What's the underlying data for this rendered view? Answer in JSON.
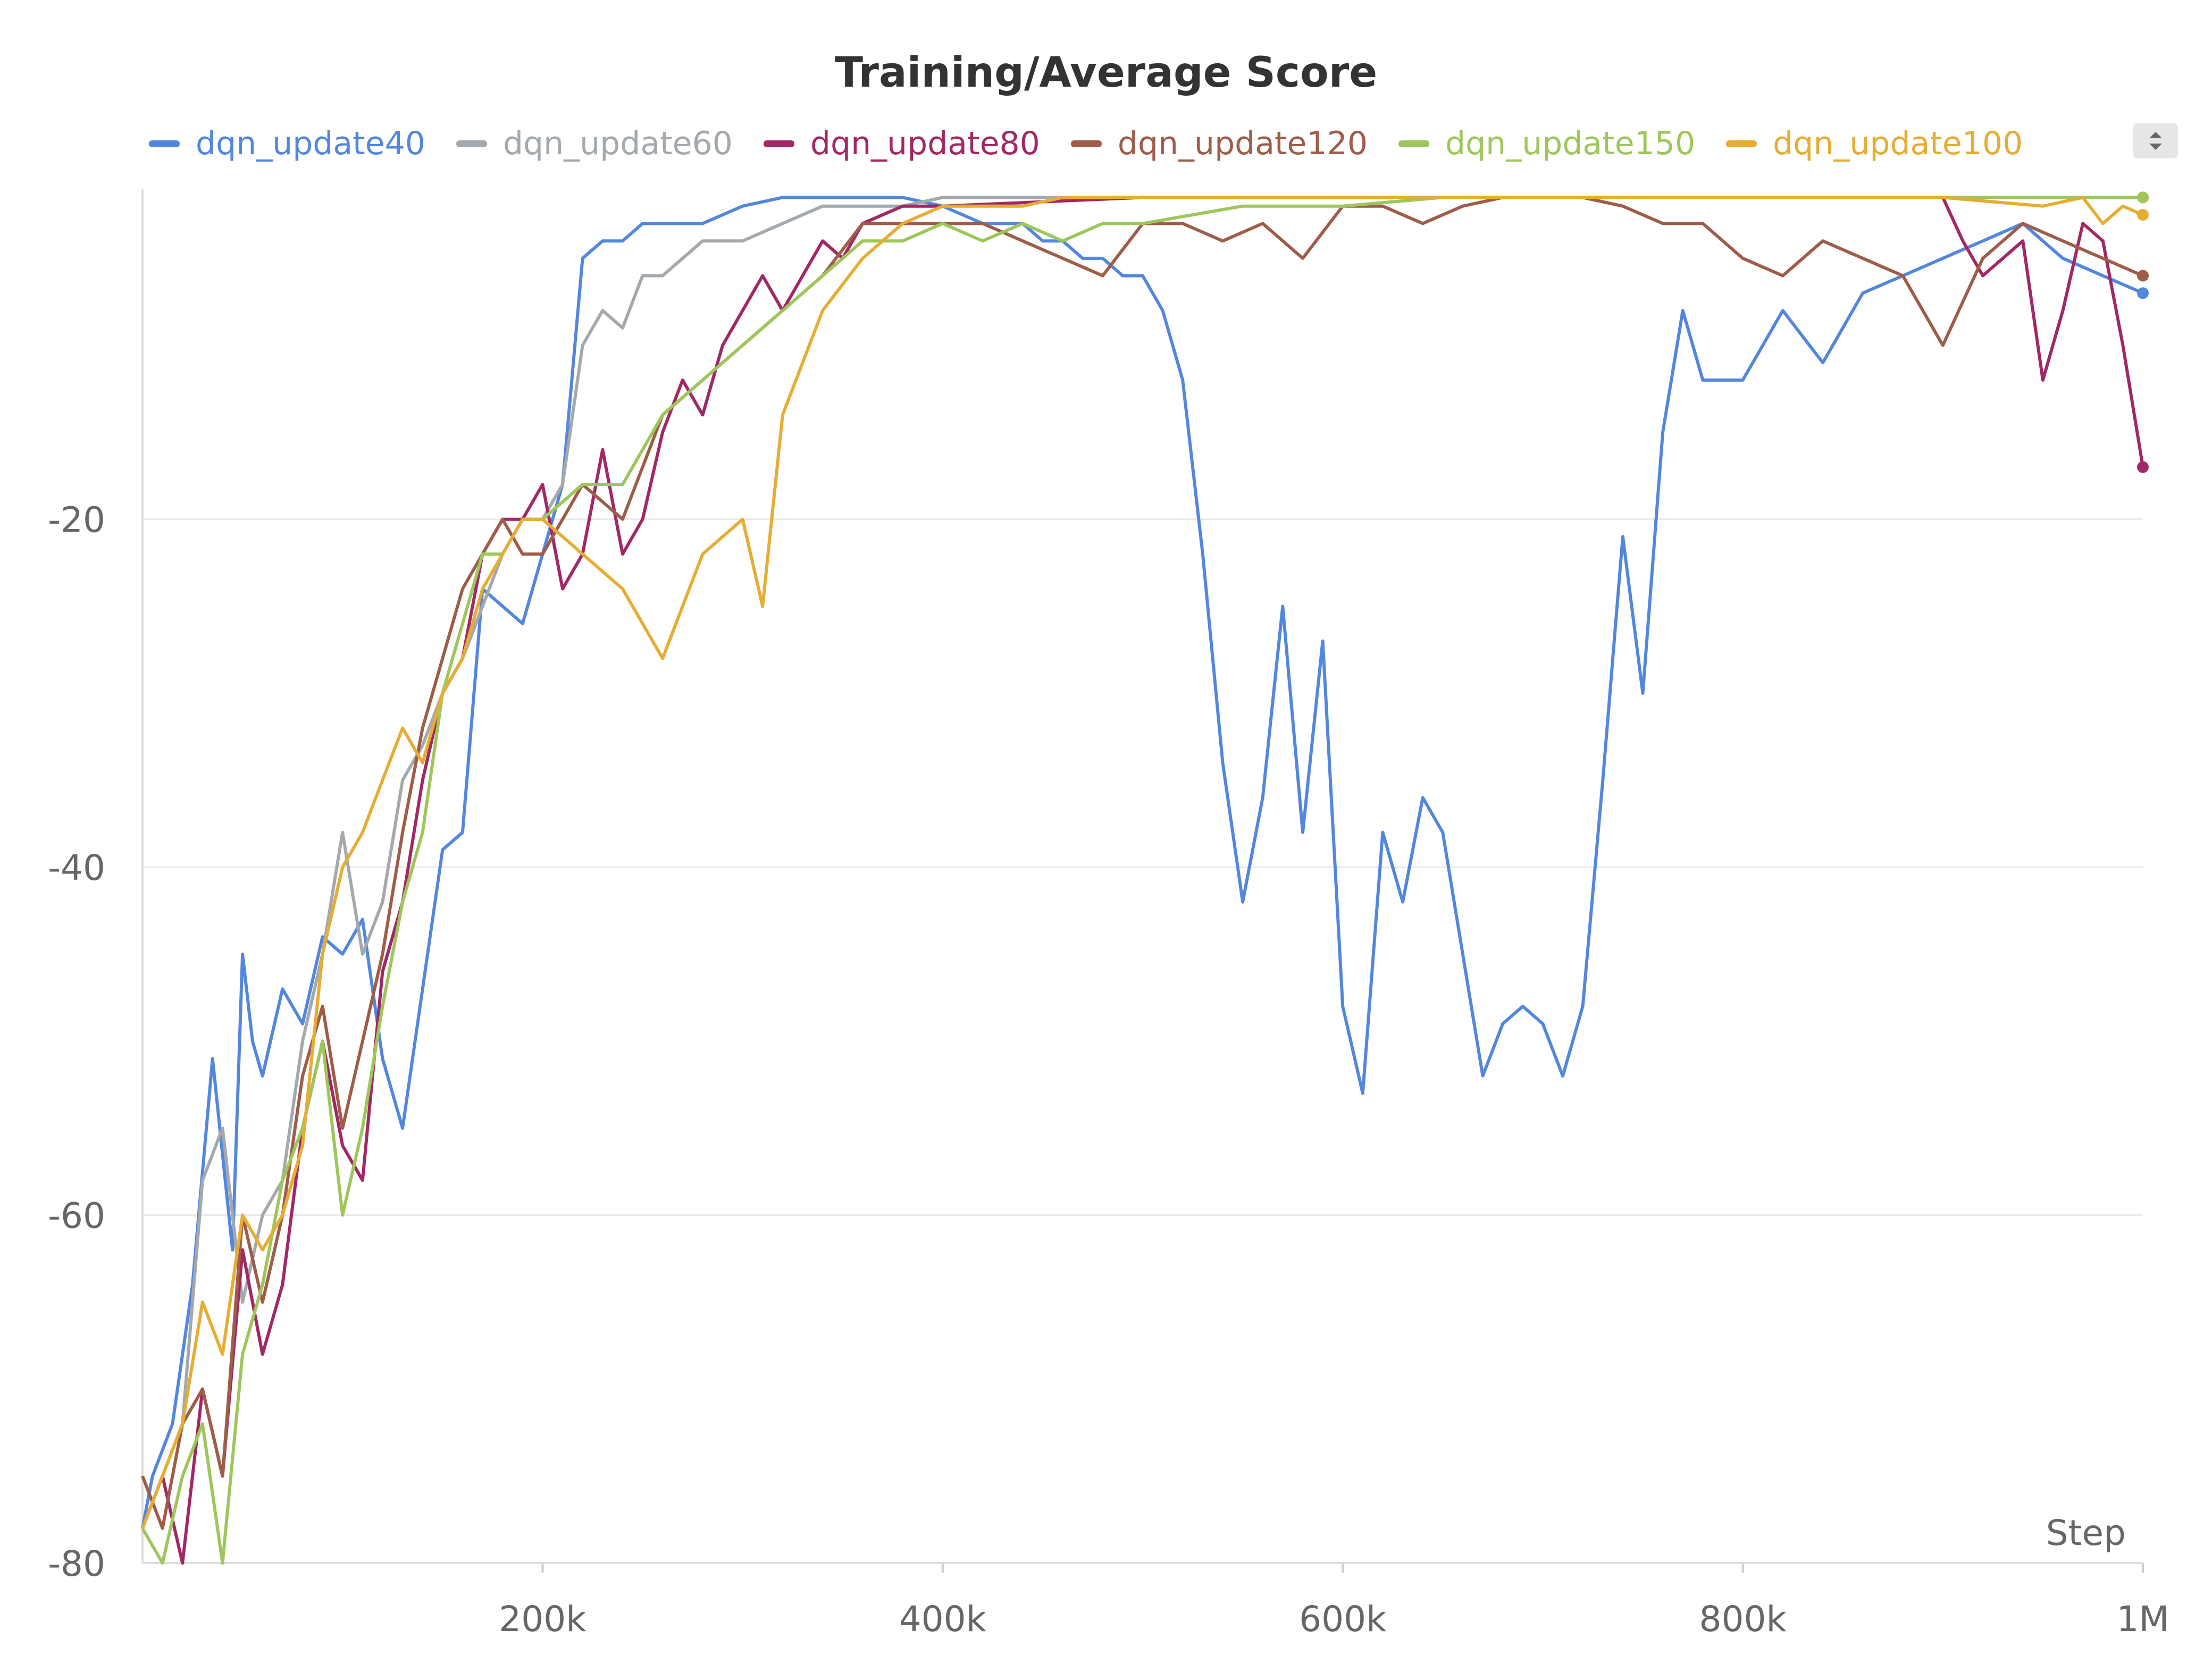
{
  "chart_data": {
    "type": "line",
    "title": "Training/Average Score",
    "xlabel": "Step",
    "ylabel": "",
    "xlim": [
      0,
      1000000
    ],
    "ylim": [
      -80,
      -1
    ],
    "x_ticks": [
      200000,
      400000,
      600000,
      800000,
      1000000
    ],
    "x_tick_labels": [
      "200k",
      "400k",
      "600k",
      "800k",
      "1M"
    ],
    "y_ticks": [
      -80,
      -60,
      -40,
      -20
    ],
    "y_tick_labels": [
      "-80",
      "-60",
      "-40",
      "-20"
    ],
    "grid": true,
    "legend": "top",
    "series": [
      {
        "name": "dqn_update40",
        "color": "#5387dd",
        "x": [
          0,
          5000,
          15000,
          25000,
          35000,
          45000,
          50000,
          55000,
          60000,
          70000,
          80000,
          90000,
          100000,
          110000,
          120000,
          130000,
          140000,
          150000,
          160000,
          170000,
          180000,
          190000,
          200000,
          210000,
          220000,
          230000,
          240000,
          250000,
          260000,
          280000,
          300000,
          320000,
          340000,
          360000,
          380000,
          400000,
          420000,
          440000,
          450000,
          460000,
          470000,
          480000,
          490000,
          500000,
          510000,
          520000,
          530000,
          540000,
          550000,
          560000,
          570000,
          580000,
          590000,
          600000,
          610000,
          620000,
          630000,
          640000,
          650000,
          660000,
          670000,
          680000,
          690000,
          700000,
          710000,
          720000,
          730000,
          740000,
          750000,
          760000,
          770000,
          780000,
          800000,
          820000,
          840000,
          860000,
          880000,
          900000,
          920000,
          940000,
          960000,
          980000,
          1000000
        ],
        "y": [
          -78,
          -75,
          -72,
          -64,
          -51,
          -62,
          -45,
          -50,
          -52,
          -47,
          -49,
          -44,
          -45,
          -43,
          -51,
          -55,
          -47,
          -39,
          -38,
          -24,
          -25,
          -26,
          -22,
          -18,
          -5,
          -4,
          -4,
          -3,
          -3,
          -3,
          -2,
          -1.5,
          -1.5,
          -1.5,
          -1.5,
          -2,
          -3,
          -3,
          -4,
          -4,
          -5,
          -5,
          -6,
          -6,
          -8,
          -12,
          -22,
          -34,
          -42,
          -36,
          -25,
          -38,
          -27,
          -48,
          -53,
          -38,
          -42,
          -36,
          -38,
          -45,
          -52,
          -49,
          -48,
          -49,
          -52,
          -48,
          -35,
          -21,
          -30,
          -15,
          -8,
          -12,
          -12,
          -8,
          -11,
          -7,
          -6,
          -5,
          -4,
          -3,
          -5,
          -6,
          -7
        ]
      },
      {
        "name": "dqn_update60",
        "color": "#a3a9ad",
        "x": [
          0,
          10000,
          20000,
          30000,
          40000,
          50000,
          60000,
          70000,
          80000,
          90000,
          100000,
          110000,
          120000,
          130000,
          140000,
          150000,
          160000,
          170000,
          180000,
          190000,
          200000,
          210000,
          220000,
          230000,
          240000,
          250000,
          260000,
          280000,
          300000,
          320000,
          340000,
          360000,
          380000,
          400000,
          500000,
          600000,
          700000,
          800000,
          900000,
          1000000
        ],
        "y": [
          -78,
          -75,
          -72,
          -58,
          -55,
          -65,
          -60,
          -58,
          -50,
          -45,
          -38,
          -45,
          -42,
          -35,
          -33,
          -30,
          -28,
          -25,
          -22,
          -20,
          -20,
          -18,
          -10,
          -8,
          -9,
          -6,
          -6,
          -4,
          -4,
          -3,
          -2,
          -2,
          -2,
          -1.5,
          -1.5,
          -1.5,
          -1.5,
          -1.5,
          -1.5,
          -1.5
        ]
      },
      {
        "name": "dqn_update80",
        "color": "#a12864",
        "x": [
          0,
          10000,
          20000,
          30000,
          40000,
          50000,
          60000,
          70000,
          80000,
          90000,
          100000,
          110000,
          120000,
          130000,
          140000,
          150000,
          160000,
          170000,
          180000,
          190000,
          200000,
          210000,
          220000,
          230000,
          240000,
          250000,
          260000,
          270000,
          280000,
          290000,
          300000,
          310000,
          320000,
          330000,
          340000,
          350000,
          360000,
          380000,
          400000,
          500000,
          600000,
          700000,
          800000,
          900000,
          910000,
          920000,
          930000,
          940000,
          950000,
          960000,
          970000,
          980000,
          990000,
          1000000
        ],
        "y": [
          -78,
          -75,
          -80,
          -70,
          -75,
          -62,
          -68,
          -64,
          -55,
          -50,
          -56,
          -58,
          -46,
          -42,
          -35,
          -30,
          -28,
          -22,
          -20,
          -20,
          -18,
          -24,
          -22,
          -16,
          -22,
          -20,
          -15,
          -12,
          -14,
          -10,
          -8,
          -6,
          -8,
          -6,
          -4,
          -5,
          -3,
          -2,
          -2,
          -1.5,
          -1.5,
          -1.5,
          -1.5,
          -1.5,
          -4,
          -6,
          -5,
          -4,
          -12,
          -8,
          -3,
          -4,
          -10,
          -17
        ]
      },
      {
        "name": "dqn_update120",
        "color": "#9e5d48",
        "x": [
          0,
          10000,
          20000,
          30000,
          40000,
          50000,
          60000,
          70000,
          80000,
          90000,
          100000,
          110000,
          120000,
          130000,
          140000,
          150000,
          160000,
          170000,
          180000,
          190000,
          200000,
          220000,
          240000,
          260000,
          280000,
          300000,
          320000,
          340000,
          360000,
          380000,
          400000,
          420000,
          440000,
          460000,
          480000,
          500000,
          520000,
          540000,
          560000,
          580000,
          600000,
          620000,
          640000,
          660000,
          680000,
          700000,
          720000,
          740000,
          760000,
          780000,
          800000,
          820000,
          840000,
          860000,
          880000,
          900000,
          920000,
          940000,
          960000,
          980000,
          1000000
        ],
        "y": [
          -75,
          -78,
          -72,
          -70,
          -75,
          -60,
          -65,
          -60,
          -52,
          -48,
          -55,
          -50,
          -45,
          -38,
          -32,
          -28,
          -24,
          -22,
          -20,
          -22,
          -22,
          -18,
          -20,
          -14,
          -12,
          -10,
          -8,
          -6,
          -3,
          -3,
          -3,
          -3,
          -4,
          -5,
          -6,
          -3,
          -3,
          -4,
          -3,
          -5,
          -2,
          -2,
          -3,
          -2,
          -1.5,
          -1.5,
          -1.5,
          -2,
          -3,
          -3,
          -5,
          -6,
          -4,
          -5,
          -6,
          -10,
          -5,
          -3,
          -4,
          -5,
          -6
        ]
      },
      {
        "name": "dqn_update150",
        "color": "#9fc65b",
        "x": [
          0,
          10000,
          20000,
          30000,
          40000,
          50000,
          60000,
          70000,
          80000,
          90000,
          100000,
          110000,
          120000,
          130000,
          140000,
          150000,
          160000,
          170000,
          180000,
          190000,
          200000,
          220000,
          240000,
          260000,
          280000,
          300000,
          320000,
          340000,
          360000,
          380000,
          400000,
          420000,
          440000,
          460000,
          480000,
          500000,
          550000,
          600000,
          650000,
          700000,
          750000,
          800000,
          850000,
          900000,
          950000,
          1000000
        ],
        "y": [
          -78,
          -80,
          -75,
          -72,
          -80,
          -68,
          -64,
          -58,
          -55,
          -50,
          -60,
          -55,
          -48,
          -42,
          -38,
          -30,
          -26,
          -22,
          -22,
          -20,
          -20,
          -18,
          -18,
          -14,
          -12,
          -10,
          -8,
          -6,
          -4,
          -4,
          -3,
          -4,
          -3,
          -4,
          -3,
          -3,
          -2,
          -2,
          -1.5,
          -1.5,
          -1.5,
          -1.5,
          -1.5,
          -1.5,
          -1.5,
          -1.5
        ]
      },
      {
        "name": "dqn_update100",
        "color": "#e6ad34",
        "x": [
          0,
          10000,
          20000,
          30000,
          40000,
          50000,
          60000,
          70000,
          80000,
          90000,
          100000,
          110000,
          120000,
          130000,
          140000,
          150000,
          160000,
          170000,
          180000,
          190000,
          200000,
          220000,
          240000,
          260000,
          280000,
          300000,
          310000,
          320000,
          340000,
          360000,
          380000,
          400000,
          420000,
          440000,
          460000,
          500000,
          600000,
          700000,
          800000,
          900000,
          950000,
          970000,
          980000,
          990000,
          1000000
        ],
        "y": [
          -78,
          -75,
          -72,
          -65,
          -68,
          -60,
          -62,
          -60,
          -56,
          -45,
          -40,
          -38,
          -35,
          -32,
          -34,
          -30,
          -28,
          -24,
          -22,
          -20,
          -20,
          -22,
          -24,
          -28,
          -22,
          -20,
          -25,
          -14,
          -8,
          -5,
          -3,
          -2,
          -2,
          -2,
          -1.5,
          -1.5,
          -1.5,
          -1.5,
          -1.5,
          -1.5,
          -2,
          -1.5,
          -3,
          -2,
          -2.5
        ]
      }
    ]
  }
}
